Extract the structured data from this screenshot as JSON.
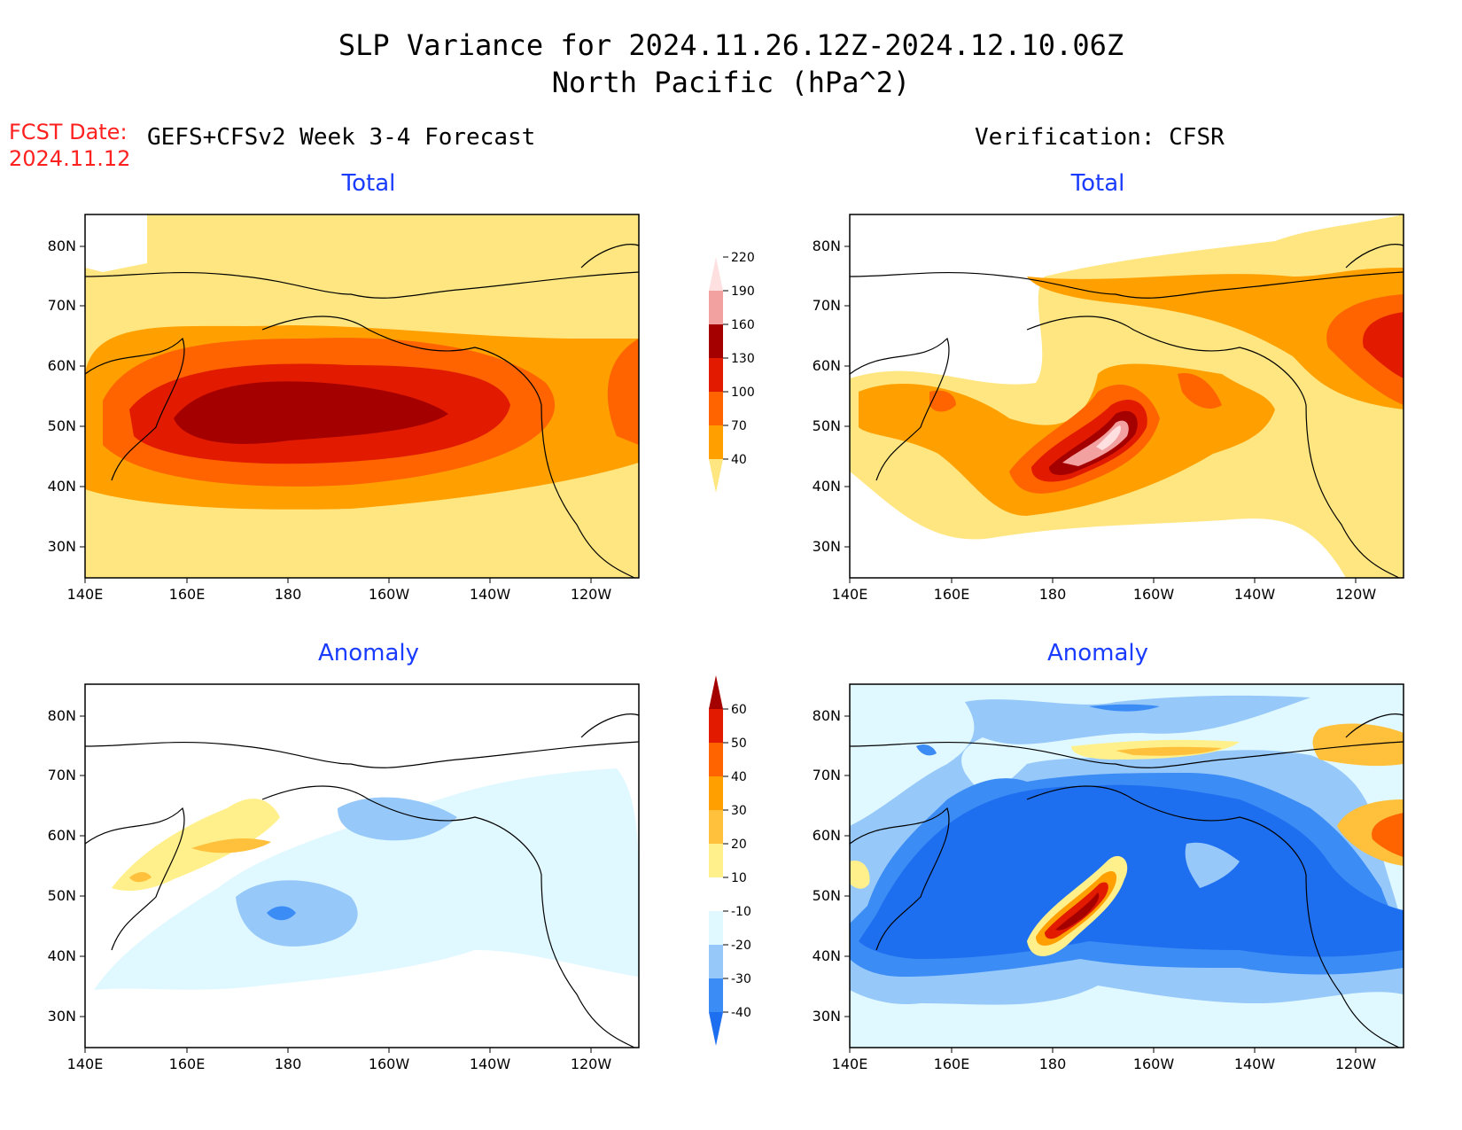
{
  "header": {
    "title_line1": "SLP Variance for 2024.11.26.12Z-2024.12.10.06Z",
    "title_line2": "North Pacific (hPa^2)",
    "fcst_label": "FCST Date:",
    "fcst_date": "2024.11.12",
    "left_column_title": "GEFS+CFSv2 Week 3-4 Forecast",
    "right_column_title": "Verification: CFSR"
  },
  "panels": {
    "fcst_total": "Total",
    "verif_total": "Total",
    "fcst_anomaly": "Anomaly",
    "verif_anomaly": "Anomaly"
  },
  "axes": {
    "lat_labels": [
      "80N",
      "70N",
      "60N",
      "50N",
      "40N",
      "30N"
    ],
    "lon_labels": [
      "140E",
      "160E",
      "180",
      "160W",
      "140W",
      "120W"
    ]
  },
  "colorbars": {
    "total": {
      "labels": [
        "40",
        "70",
        "100",
        "130",
        "160",
        "190",
        "220"
      ],
      "colors": [
        "#ffe680",
        "#ffa000",
        "#ff6400",
        "#e11a00",
        "#a50000",
        "#f2a0a0",
        "#ffe0e0"
      ]
    },
    "anomaly": {
      "labels": [
        "-40",
        "-30",
        "-20",
        "-10",
        "10",
        "20",
        "30",
        "40",
        "50",
        "60"
      ],
      "colors": [
        "#1e6ef0",
        "#3c8cf5",
        "#96c8fa",
        "#e0f8ff",
        "#ffffff",
        "#fff08c",
        "#ffc03c",
        "#ffa000",
        "#ff6400",
        "#e11a00",
        "#a50000"
      ]
    }
  },
  "palette": {
    "blue_title": "#1a3cff",
    "red_label": "#ff2020"
  }
}
